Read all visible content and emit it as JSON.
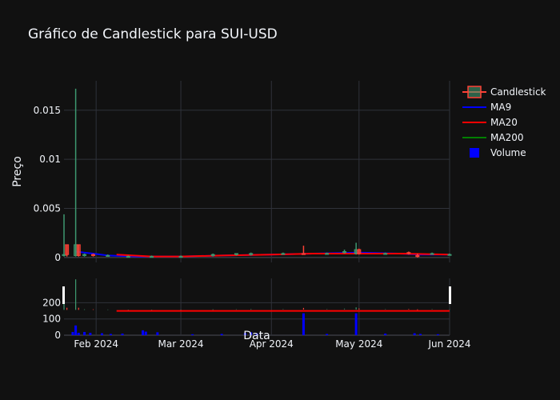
{
  "chart_data": {
    "type": "candlestick",
    "title": "Gráfico de Candlestick para SUI-USD",
    "xlabel": "Data",
    "ylabel": "Preço",
    "x_ticks": [
      {
        "date": "2024-02-01",
        "label": "Feb 2024"
      },
      {
        "date": "2024-03-01",
        "label": "Mar 2024"
      },
      {
        "date": "2024-04-01",
        "label": "Apr 2024"
      },
      {
        "date": "2024-05-01",
        "label": "May 2024"
      },
      {
        "date": "2024-06-01",
        "label": "Jun 2024"
      }
    ],
    "xlim": [
      "2024-01-21",
      "2024-06-01"
    ],
    "price_panel": {
      "ylim": [
        -0.0005,
        0.018
      ],
      "y_ticks": [
        {
          "value": 0,
          "label": "0"
        },
        {
          "value": 0.005,
          "label": "0.005"
        },
        {
          "value": 0.01,
          "label": "0.01"
        },
        {
          "value": 0.015,
          "label": "0.015"
        }
      ]
    },
    "volume_panel": {
      "ylim": [
        0,
        350
      ],
      "y_ticks": [
        {
          "value": 0,
          "label": "0"
        },
        {
          "value": 100,
          "label": "100"
        },
        {
          "value": 200,
          "label": "200"
        }
      ]
    },
    "colors": {
      "increasing": "#3d9970",
      "decreasing": "#ff4136",
      "ma9": "#0000ff",
      "ma20": "#ff0000",
      "ma200": "#008000",
      "volume": "#0000ff"
    },
    "legend": {
      "placement": "right",
      "entries": [
        "Candlestick",
        "MA9",
        "MA20",
        "MA200",
        "Volume"
      ]
    },
    "candles": [
      {
        "date": "2024-01-21",
        "open": 0.0002,
        "high": 0.0044,
        "low": 0.0001,
        "close": 0.0003
      },
      {
        "date": "2024-01-22",
        "open": 0.0013,
        "high": 0.0013,
        "low": 0.0001,
        "close": 0.0003
      },
      {
        "date": "2024-01-25",
        "open": 0.0002,
        "high": 0.0172,
        "low": 0.0001,
        "close": 0.0013
      },
      {
        "date": "2024-01-26",
        "open": 0.0013,
        "high": 0.0013,
        "low": 0.0001,
        "close": 0.0002
      },
      {
        "date": "2024-01-28",
        "open": 0.0002,
        "high": 0.0004,
        "low": 0.0001,
        "close": 0.0003
      },
      {
        "date": "2024-01-31",
        "open": 0.0003,
        "high": 0.0004,
        "low": 0.0001,
        "close": 0.0002
      },
      {
        "date": "2024-02-05",
        "open": 0.0002,
        "high": 0.0003,
        "low": 0.0001,
        "close": 0.0002
      },
      {
        "date": "2024-02-12",
        "open": 0.0001,
        "high": 0.0002,
        "low": 0.0,
        "close": 0.0001
      },
      {
        "date": "2024-02-20",
        "open": 0.0001,
        "high": 0.0002,
        "low": 0.0,
        "close": 0.0001
      },
      {
        "date": "2024-03-01",
        "open": 0.0001,
        "high": 0.0002,
        "low": 0.0,
        "close": 0.0001
      },
      {
        "date": "2024-03-12",
        "open": 0.0002,
        "high": 0.0004,
        "low": 0.0001,
        "close": 0.0003
      },
      {
        "date": "2024-03-20",
        "open": 0.0003,
        "high": 0.0004,
        "low": 0.0002,
        "close": 0.0004
      },
      {
        "date": "2024-03-25",
        "open": 0.0003,
        "high": 0.0005,
        "low": 0.0002,
        "close": 0.0004
      },
      {
        "date": "2024-04-05",
        "open": 0.0004,
        "high": 0.0005,
        "low": 0.0003,
        "close": 0.0004
      },
      {
        "date": "2024-04-12",
        "open": 0.0004,
        "high": 0.0012,
        "low": 0.0003,
        "close": 0.0003
      },
      {
        "date": "2024-04-20",
        "open": 0.0004,
        "high": 0.0005,
        "low": 0.0003,
        "close": 0.0004
      },
      {
        "date": "2024-04-26",
        "open": 0.0005,
        "high": 0.0008,
        "low": 0.0004,
        "close": 0.0006
      },
      {
        "date": "2024-04-30",
        "open": 0.0004,
        "high": 0.0015,
        "low": 0.0003,
        "close": 0.0008
      },
      {
        "date": "2024-05-01",
        "open": 0.0008,
        "high": 0.0009,
        "low": 0.0003,
        "close": 0.0004
      },
      {
        "date": "2024-05-10",
        "open": 0.0004,
        "high": 0.0005,
        "low": 0.0003,
        "close": 0.0004
      },
      {
        "date": "2024-05-18",
        "open": 0.0005,
        "high": 0.0006,
        "low": 0.0003,
        "close": 0.0004
      },
      {
        "date": "2024-05-21",
        "open": 0.0002,
        "high": 0.0004,
        "low": 0.0,
        "close": 0.0001
      },
      {
        "date": "2024-05-26",
        "open": 0.0004,
        "high": 0.0005,
        "low": 0.0003,
        "close": 0.0004
      },
      {
        "date": "2024-06-01",
        "open": 0.0003,
        "high": 0.0004,
        "low": 0.0002,
        "close": 0.0003
      }
    ],
    "ma9": [
      {
        "date": "2024-01-25",
        "value": 0.0006
      },
      {
        "date": "2024-01-31",
        "value": 0.0004
      },
      {
        "date": "2024-02-05",
        "value": 0.0002
      },
      {
        "date": "2024-02-15",
        "value": 0.0001
      },
      {
        "date": "2024-03-01",
        "value": 0.0001
      },
      {
        "date": "2024-03-15",
        "value": 0.0002
      },
      {
        "date": "2024-04-01",
        "value": 0.0003
      },
      {
        "date": "2024-04-15",
        "value": 0.0004
      },
      {
        "date": "2024-05-01",
        "value": 0.0005
      },
      {
        "date": "2024-05-15",
        "value": 0.0004
      },
      {
        "date": "2024-05-22",
        "value": 0.0003
      },
      {
        "date": "2024-06-01",
        "value": 0.0003
      }
    ],
    "ma20": [
      {
        "date": "2024-02-08",
        "value": 0.0003
      },
      {
        "date": "2024-02-20",
        "value": 0.0001
      },
      {
        "date": "2024-03-01",
        "value": 0.0001
      },
      {
        "date": "2024-03-15",
        "value": 0.0002
      },
      {
        "date": "2024-04-01",
        "value": 0.0003
      },
      {
        "date": "2024-04-15",
        "value": 0.0004
      },
      {
        "date": "2024-05-01",
        "value": 0.0004
      },
      {
        "date": "2024-05-15",
        "value": 0.0004
      },
      {
        "date": "2024-06-01",
        "value": 0.0003
      }
    ],
    "volume_bars": [
      {
        "date": "2024-01-24",
        "value": 20
      },
      {
        "date": "2024-01-25",
        "value": 60
      },
      {
        "date": "2024-01-26",
        "value": 15
      },
      {
        "date": "2024-01-28",
        "value": 20
      },
      {
        "date": "2024-01-30",
        "value": 15
      },
      {
        "date": "2024-02-03",
        "value": 12
      },
      {
        "date": "2024-02-06",
        "value": 8
      },
      {
        "date": "2024-02-10",
        "value": 10
      },
      {
        "date": "2024-02-17",
        "value": 30
      },
      {
        "date": "2024-02-18",
        "value": 22
      },
      {
        "date": "2024-02-22",
        "value": 18
      },
      {
        "date": "2024-03-05",
        "value": 6
      },
      {
        "date": "2024-03-15",
        "value": 8
      },
      {
        "date": "2024-03-23",
        "value": 14
      },
      {
        "date": "2024-03-25",
        "value": 18
      },
      {
        "date": "2024-03-27",
        "value": 12
      },
      {
        "date": "2024-04-12",
        "value": 135
      },
      {
        "date": "2024-04-20",
        "value": 8
      },
      {
        "date": "2024-04-30",
        "value": 135
      },
      {
        "date": "2024-05-10",
        "value": 10
      },
      {
        "date": "2024-05-20",
        "value": 12
      },
      {
        "date": "2024-05-22",
        "value": 8
      },
      {
        "date": "2024-05-28",
        "value": 6
      }
    ]
  }
}
